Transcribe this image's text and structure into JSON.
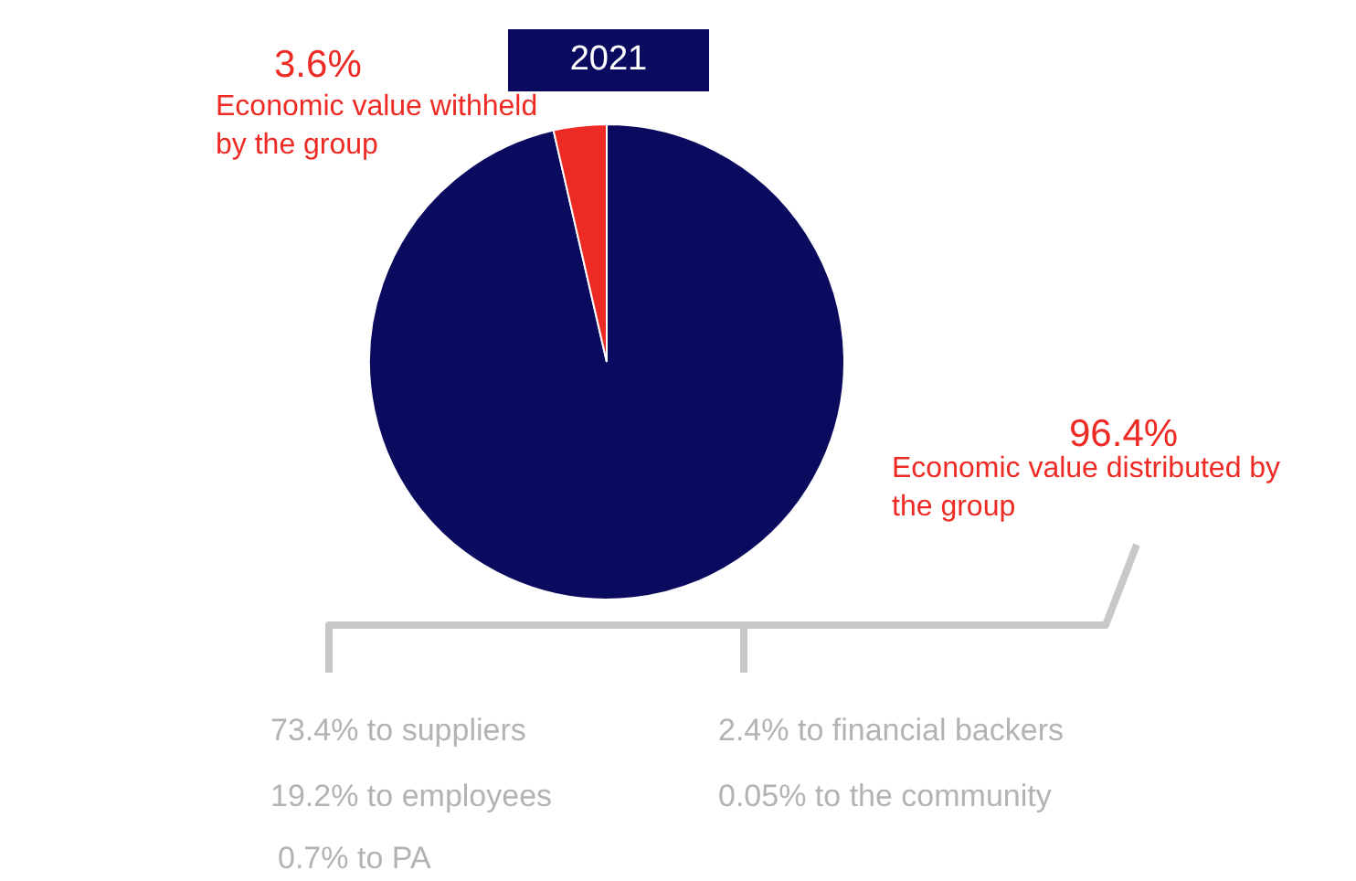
{
  "chart_data": {
    "type": "pie",
    "title": "2021",
    "categories": [
      "Economic value distributed by the group",
      "Economic value withheld by the group"
    ],
    "values": [
      96.4,
      3.6
    ],
    "colors": [
      "#0a0a5e",
      "#ee2a24"
    ],
    "value_labels": [
      "96.4%",
      "3.6%"
    ],
    "annotations": [
      "73.4% to suppliers",
      "19.2% to employees",
      "0.7% to PA",
      "2.4% to financial backers",
      "0.05% to the community"
    ]
  }
}
